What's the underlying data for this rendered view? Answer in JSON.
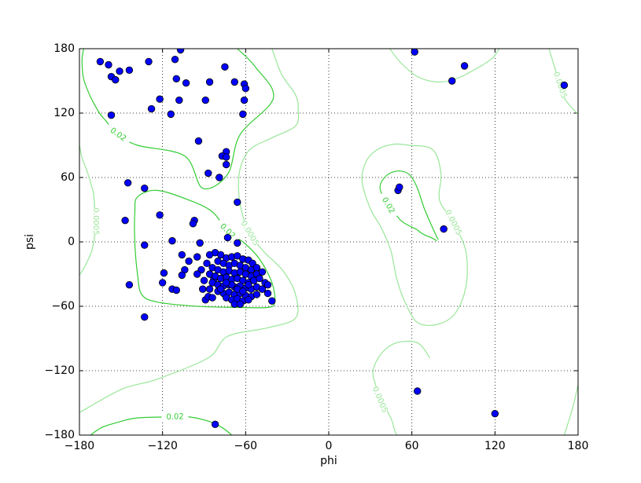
{
  "chart_data": {
    "type": "scatter",
    "xlabel": "phi",
    "ylabel": "psi",
    "xlim": [
      -180,
      180
    ],
    "ylim": [
      -180,
      180
    ],
    "xticks": [
      {
        "value": -180,
        "label": "−180"
      },
      {
        "value": -120,
        "label": "−120"
      },
      {
        "value": -60,
        "label": "−60"
      },
      0,
      60,
      120,
      180
    ],
    "yticks": [
      {
        "value": -180,
        "label": "−180"
      },
      {
        "value": -120,
        "label": "−120"
      },
      {
        "value": -60,
        "label": "−60"
      },
      0,
      60,
      120,
      180
    ],
    "grid": true,
    "color": "#0000ff",
    "x": [
      -165,
      -159,
      -157,
      -154,
      -151,
      -144,
      -130,
      -111,
      -107,
      -75,
      -110,
      -103,
      -86,
      -68,
      -61,
      -60,
      -61,
      -89,
      -108,
      -122,
      -128,
      -114,
      -157,
      -62,
      -94,
      -74,
      -77,
      -74,
      -74,
      -87,
      -79,
      -145,
      -133,
      -66,
      -147,
      -122,
      -97,
      -98,
      -73,
      -113,
      -93,
      -66,
      -133,
      -106,
      -101,
      -95,
      -104,
      -106,
      -119,
      -120,
      -144,
      -113,
      -110,
      -91,
      -89,
      -133,
      -87,
      -83,
      -41,
      -44,
      -82,
      62,
      98,
      89,
      170,
      50,
      51,
      83,
      64,
      120,
      -82,
      -78,
      -74,
      -70,
      -66,
      -62,
      -58,
      -55,
      -80,
      -76,
      -72,
      -68,
      -64,
      -60,
      -56,
      -52,
      -84,
      -80,
      -76,
      -72,
      -68,
      -64,
      -60,
      -56,
      -52,
      -48,
      -86,
      -82,
      -78,
      -74,
      -70,
      -66,
      -62,
      -58,
      -54,
      -50,
      -46,
      -84,
      -80,
      -76,
      -72,
      -68,
      -64,
      -60,
      -56,
      -52,
      -48,
      -80,
      -76,
      -72,
      -68,
      -64,
      -60,
      -56,
      -52,
      -74,
      -70,
      -66,
      -62,
      -58,
      -70,
      -66,
      -62,
      -58,
      -74,
      -78,
      -88,
      -90,
      -86,
      -84,
      -68,
      -64,
      -44,
      -86,
      -92,
      -95
    ],
    "values": [
      168,
      165,
      154,
      151,
      159,
      160,
      168,
      170,
      179,
      163,
      152,
      148,
      149,
      149,
      147,
      143,
      132,
      132,
      132,
      133,
      124,
      119,
      118,
      119,
      94,
      84,
      80,
      79,
      72,
      64,
      60,
      55,
      50,
      37,
      20,
      25,
      20,
      17,
      4,
      1,
      -1,
      -1,
      -3,
      -12,
      -18,
      -14,
      -26,
      -31,
      -29,
      -38,
      -40,
      -44,
      -45,
      -44,
      -54,
      -70,
      -51,
      -35,
      -55,
      -48,
      -170,
      177,
      164,
      150,
      146,
      48,
      51,
      12,
      -139,
      -160,
      -10,
      -12,
      -15,
      -14,
      -13,
      -16,
      -17,
      -20,
      -18,
      -20,
      -22,
      -20,
      -22,
      -24,
      -26,
      -24,
      -24,
      -26,
      -28,
      -27,
      -29,
      -28,
      -30,
      -32,
      -30,
      -28,
      -30,
      -32,
      -34,
      -33,
      -35,
      -34,
      -36,
      -38,
      -36,
      -34,
      -38,
      -38,
      -40,
      -41,
      -40,
      -42,
      -41,
      -43,
      -44,
      -42,
      -44,
      -46,
      -48,
      -47,
      -49,
      -48,
      -50,
      -51,
      -49,
      -52,
      -54,
      -53,
      -55,
      -54,
      -40,
      -44,
      -46,
      -40,
      -38,
      -44,
      -20,
      -36,
      -44,
      -52,
      -58,
      -58,
      -40,
      -12,
      -26,
      -30
    ],
    "contours": [
      {
        "color": "#33cc33",
        "lines": [
          {
            "label": 0.02,
            "closed": false,
            "phi": [
              -177,
              -178,
              -178,
              -177,
              -174,
              -170,
              -165,
              -161,
              -158,
              -152,
              -138,
              -104,
              -91,
              -73,
              -64,
              -40,
              -53,
              -66
            ],
            "psi": [
              180,
              172,
              163,
              152,
              141,
              130,
              119,
              113,
              108,
              100,
              90,
              80,
              50,
              63,
              100,
              134,
              163,
              180
            ]
          },
          {
            "label": 0.02,
            "closed": true,
            "phi": [
              -135,
              -138,
              -140,
              -140,
              -138,
              -124,
              -101,
              -84,
              -73,
              -61,
              -50,
              -41,
              -39,
              -44,
              -67,
              -95,
              -124
            ],
            "psi": [
              -49,
              -31,
              -1,
              28,
              42,
              48,
              39,
              28,
              10,
              -1,
              -16,
              -38,
              -56,
              -61,
              -61,
              -60,
              -56
            ]
          },
          {
            "label": 0.02,
            "closed": false,
            "phi": [
              79,
              75,
              69,
              64,
              58,
              49,
              41,
              37,
              43,
              47,
              52,
              58,
              63,
              66,
              70,
              74,
              78
            ],
            "psi": [
              2,
              13,
              31,
              50,
              63,
              66,
              61,
              50,
              34,
              28,
              20,
              15,
              12,
              9,
              6,
              4,
              1
            ]
          },
          {
            "label": 0.02,
            "closed": false,
            "phi": [
              -172,
              -164,
              -152,
              -138,
              -111,
              -101,
              -87,
              -77,
              -70
            ],
            "psi": [
              -180,
              -173,
              -168,
              -164,
              -163,
              -163,
              -167,
              -173,
              -180
            ]
          }
        ]
      },
      {
        "color": "#99e699",
        "lines": [
          {
            "label": 0.0005,
            "closed": false,
            "phi": [
              -180,
              -178,
              -174,
              -170,
              -169,
              -168,
              -169,
              -171,
              -175,
              -178,
              -180
            ],
            "psi": [
              90,
              78,
              64,
              46,
              32,
              19,
              6,
              -8,
              -20,
              -27,
              -31
            ]
          },
          {
            "label": 0.0005,
            "closed": false,
            "phi": [
              -41,
              -34,
              -24,
              -22,
              -24,
              -41,
              -57,
              -64,
              -65,
              -62,
              -57,
              -47,
              -33,
              -24,
              -24,
              -44,
              -73,
              -87,
              -124,
              -149,
              -180
            ],
            "psi": [
              180,
              156,
              137,
              123,
              108,
              97,
              86,
              68,
              46,
              24,
              8,
              -9,
              -27,
              -49,
              -71,
              -80,
              -88,
              -108,
              -128,
              -137,
              -159
            ]
          },
          {
            "label": 0.0005,
            "closed": true,
            "phi": [
              30,
              24,
              27,
              35,
              47,
              58,
              75,
              81,
              80,
              90,
              99,
              99,
              91,
              78,
              64,
              55,
              49,
              45,
              38
            ],
            "psi": [
              31,
              57,
              75,
              86,
              91,
              90,
              86,
              64,
              39,
              18,
              -9,
              -42,
              -67,
              -77,
              -75,
              -56,
              -34,
              -9,
              13
            ]
          },
          {
            "label": 0.0005,
            "closed": false,
            "phi": [
              159,
              163,
              167,
              171,
              180
            ],
            "psi": [
              180,
              163,
              146,
              132,
              119
            ]
          },
          {
            "label": 0.0005,
            "closed": false,
            "phi": [
              73,
              64,
              49,
              38,
              32,
              34,
              37,
              41,
              44,
              46,
              47,
              48,
              49
            ],
            "psi": [
              -108,
              -94,
              -94,
              -104,
              -120,
              -134,
              -147,
              -155,
              -162,
              -168,
              -173,
              -177,
              -180
            ]
          },
          {
            "closed": false,
            "phi": [
              44,
              52,
              64,
              78,
              92,
              106,
              118,
              123
            ],
            "psi": [
              180,
              167,
              154,
              149,
              152,
              161,
              171,
              180
            ]
          },
          {
            "closed": false,
            "phi": [
              180,
              176,
              170
            ],
            "psi": [
              -133,
              -155,
              -180
            ]
          }
        ]
      }
    ]
  }
}
